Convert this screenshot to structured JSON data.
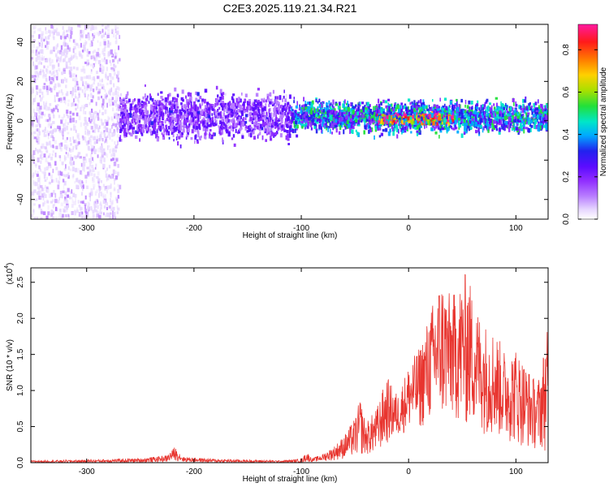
{
  "figure": {
    "title": "C2E3.2025.119.21.34.R21",
    "colors": {
      "axis": "#000000",
      "snr_line": "#e8352f",
      "spectrogram_bg": "#ffffff"
    }
  },
  "chart_data": [
    {
      "type": "heatmap",
      "title": "C2E3.2025.119.21.34.R21",
      "xlabel": "Height of straight line (km)",
      "ylabel": "Frequency (Hz)",
      "xlim": [
        -352,
        130
      ],
      "ylim": [
        -50,
        49
      ],
      "xticks": [
        -300,
        -200,
        -100,
        0,
        100
      ],
      "yticks": [
        -40,
        -20,
        0,
        20,
        40
      ],
      "colorbar": {
        "label": "Normalized spectral amplitude",
        "range": [
          0.0,
          0.92
        ],
        "ticks": [
          0.0,
          0.2,
          0.4,
          0.6,
          0.8
        ],
        "colormap": [
          "#ffffff",
          "#e6d6ff",
          "#b77bff",
          "#8f2cff",
          "#5b0cff",
          "#2222ee",
          "#00aaff",
          "#00e6c8",
          "#22e03a",
          "#a8e000",
          "#ffd000",
          "#ff7a00",
          "#ff1a1a",
          "#ff1aa0"
        ]
      },
      "regions": [
        {
          "x_range": [
            -352,
            -270
          ],
          "freq_range": [
            -50,
            49
          ],
          "density": "diffuse",
          "level": 0.1
        },
        {
          "x_range": [
            -270,
            -110
          ],
          "freq_range": [
            -12,
            12
          ],
          "center": 2,
          "level": 0.25
        },
        {
          "x_range": [
            -110,
            130
          ],
          "freq_range": [
            -6,
            10
          ],
          "center": 2,
          "level": 0.45
        },
        {
          "x_range": [
            -30,
            40
          ],
          "freq_range": [
            -1,
            4
          ],
          "center": 1,
          "level": 0.8
        }
      ]
    },
    {
      "type": "line",
      "xlabel": "Height of straight line (km)",
      "ylabel": "SNR (10 * v/v)",
      "y_multiplier": "(x10",
      "y_multiplier_exp": "4",
      "xlim": [
        -352,
        130
      ],
      "ylim": [
        0,
        2.7
      ],
      "xticks": [
        -300,
        -200,
        -100,
        0,
        100
      ],
      "yticks": [
        0.0,
        0.5,
        1.0,
        1.5,
        2.0,
        2.5
      ],
      "series": [
        {
          "x": [
            -352,
            -300,
            -250,
            -225,
            -218,
            -210,
            -180,
            -150,
            -120,
            -100,
            -95,
            -90,
            -80,
            -70,
            -60,
            -50,
            -45,
            -40,
            -30,
            -20,
            -15,
            -10,
            0,
            10,
            20,
            30,
            40,
            50,
            55,
            60,
            70,
            80,
            90,
            100,
            110,
            120,
            130
          ],
          "y": [
            0.03,
            0.04,
            0.06,
            0.1,
            0.22,
            0.08,
            0.05,
            0.04,
            0.03,
            0.05,
            0.15,
            0.06,
            0.12,
            0.22,
            0.38,
            0.62,
            0.9,
            0.55,
            0.75,
            1.2,
            1.05,
            0.95,
            1.35,
            1.6,
            2.1,
            2.6,
            2.3,
            2.55,
            2.7,
            2.3,
            1.95,
            1.85,
            1.55,
            1.6,
            1.35,
            1.1,
            1.9
          ],
          "lower": [
            0.0,
            0.0,
            0.0,
            0.01,
            0.03,
            0.01,
            0.0,
            0.0,
            0.0,
            0.0,
            0.01,
            0.01,
            0.02,
            0.03,
            0.05,
            0.08,
            0.1,
            0.1,
            0.12,
            0.25,
            0.3,
            0.35,
            0.45,
            0.45,
            0.55,
            0.55,
            0.6,
            0.5,
            0.45,
            0.5,
            0.4,
            0.35,
            0.3,
            0.25,
            0.2,
            0.18,
            0.15
          ]
        }
      ]
    }
  ]
}
